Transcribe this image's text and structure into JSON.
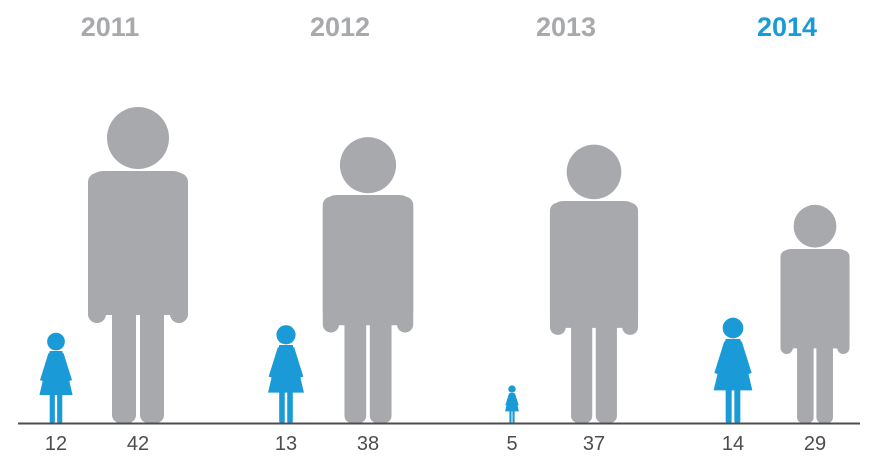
{
  "chart_data": {
    "type": "bar",
    "categories": [
      "2011",
      "2012",
      "2013",
      "2014"
    ],
    "highlighted_category": "2014",
    "series": [
      {
        "icon": "female-figure-icon",
        "color": "#1a9ad6",
        "values": [
          12,
          13,
          5,
          14
        ]
      },
      {
        "icon": "male-figure-icon",
        "color": "#a7a9ac",
        "values": [
          42,
          38,
          37,
          29
        ]
      }
    ],
    "title": "",
    "xlabel": "",
    "ylabel": "",
    "ylim": [
      0,
      42
    ],
    "grid": false,
    "legend": "none",
    "colors": {
      "year_label": "#a7a9ac",
      "year_label_highlight": "#1a9ad6",
      "value_label": "#4d4d4d",
      "baseline": "#4d4d4d"
    }
  }
}
